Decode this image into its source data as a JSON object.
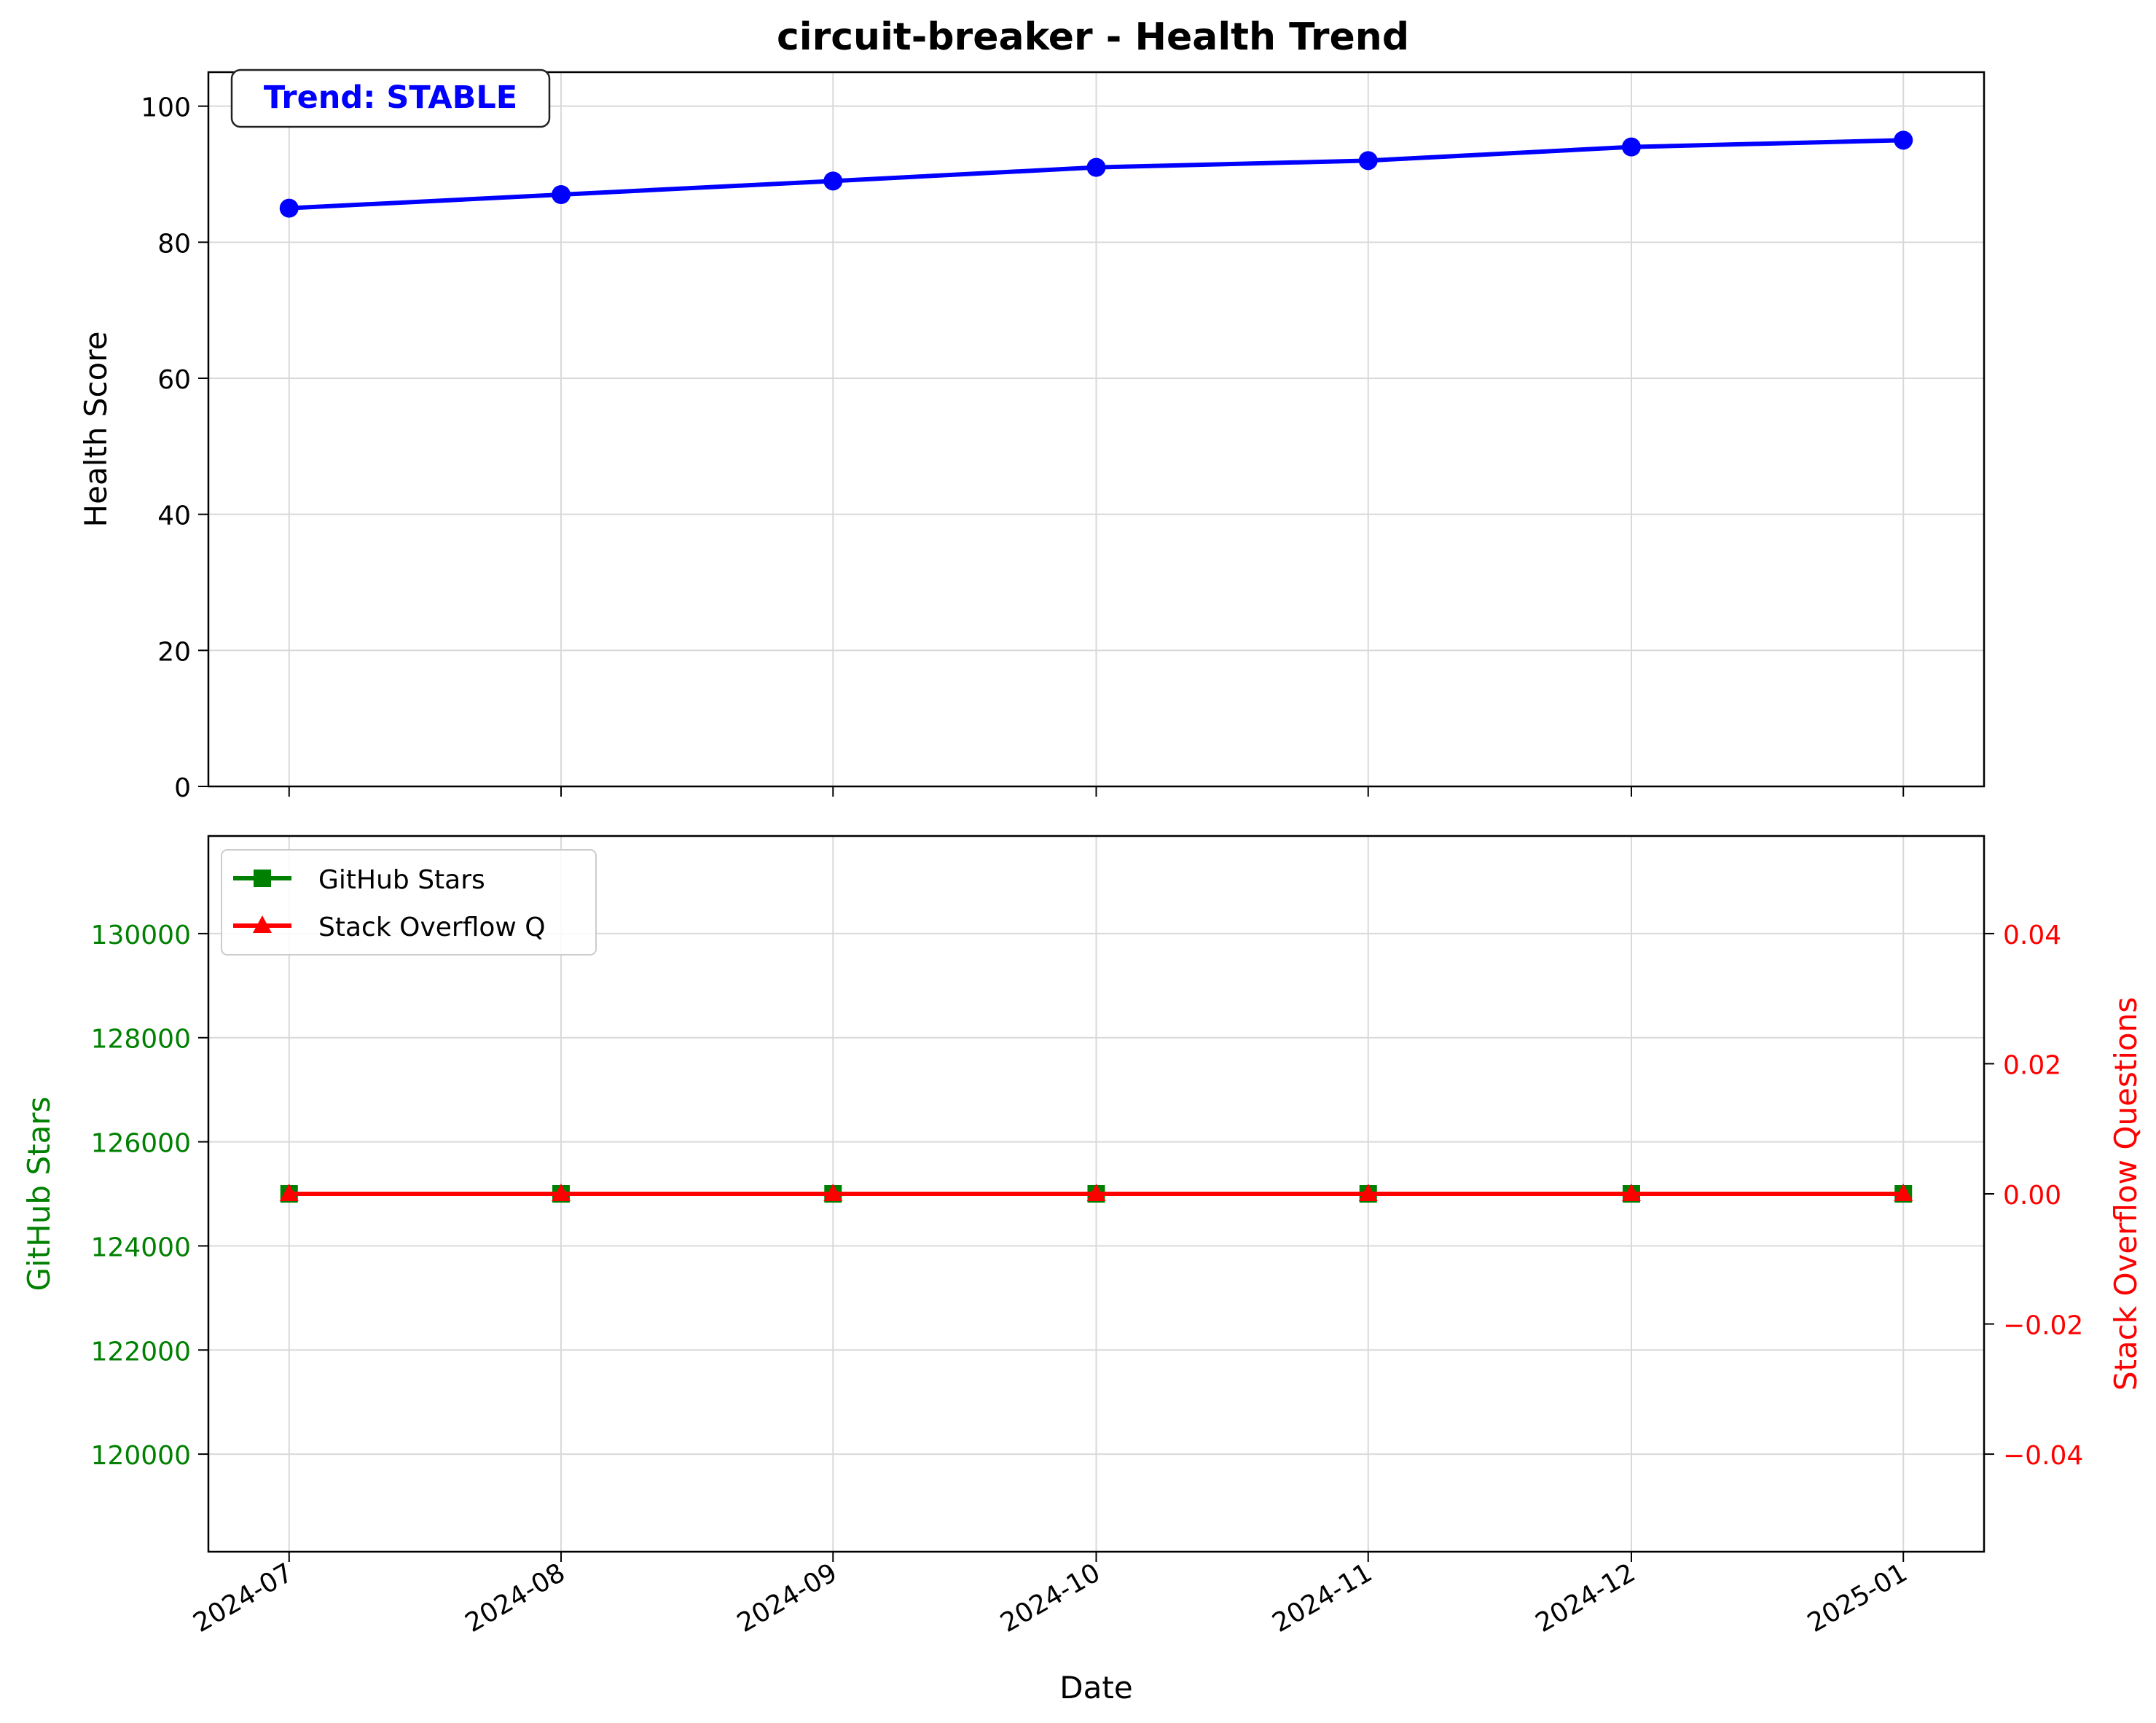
{
  "title": "circuit-breaker - Health Trend",
  "colors": {
    "health": "#0000ff",
    "stars": "#008000",
    "so": "#ff0000",
    "grid": "#d9d9d9",
    "axis": "#000000"
  },
  "chart_data": [
    {
      "type": "line",
      "title": "circuit-breaker - Health Trend",
      "ylabel": "Health Score",
      "ylim": [
        0,
        105
      ],
      "yticks": [
        0,
        20,
        40,
        60,
        80,
        100
      ],
      "grid": true,
      "annotation": "Trend: STABLE",
      "x": [
        "2024-07-01",
        "2024-08-01",
        "2024-09-01",
        "2024-10-01",
        "2024-11-01",
        "2024-12-01",
        "2025-01-01"
      ],
      "series": [
        {
          "values": [
            85,
            87,
            89,
            91,
            92,
            94,
            95
          ]
        }
      ]
    },
    {
      "type": "line",
      "xlabel": "Date",
      "xticks": [
        "2024-07",
        "2024-08",
        "2024-09",
        "2024-10",
        "2024-11",
        "2024-12",
        "2025-01"
      ],
      "x": [
        "2024-07-01",
        "2024-08-01",
        "2024-09-01",
        "2024-10-01",
        "2024-11-01",
        "2024-12-01",
        "2025-01-01"
      ],
      "ylabel": "GitHub Stars",
      "ylim": [
        118125,
        131875
      ],
      "yticks": [
        120000,
        122000,
        124000,
        126000,
        128000,
        130000
      ],
      "y2label": "Stack Overflow Questions",
      "y2lim": [
        -0.055,
        0.055
      ],
      "y2ticks": [
        -0.04,
        -0.02,
        0.0,
        0.02,
        0.04
      ],
      "y2ticklabels": [
        "−0.04",
        "−0.02",
        "0.00",
        "0.02",
        "0.04"
      ],
      "legend": "upper-left",
      "grid": true,
      "series": [
        {
          "name": "GitHub Stars",
          "axis": "left",
          "marker": "square",
          "values": [
            125000,
            125000,
            125000,
            125000,
            125000,
            125000,
            125000
          ]
        },
        {
          "name": "Stack Overflow Q",
          "axis": "right",
          "marker": "triangle",
          "values": [
            0,
            0,
            0,
            0,
            0,
            0,
            0
          ]
        }
      ]
    }
  ]
}
